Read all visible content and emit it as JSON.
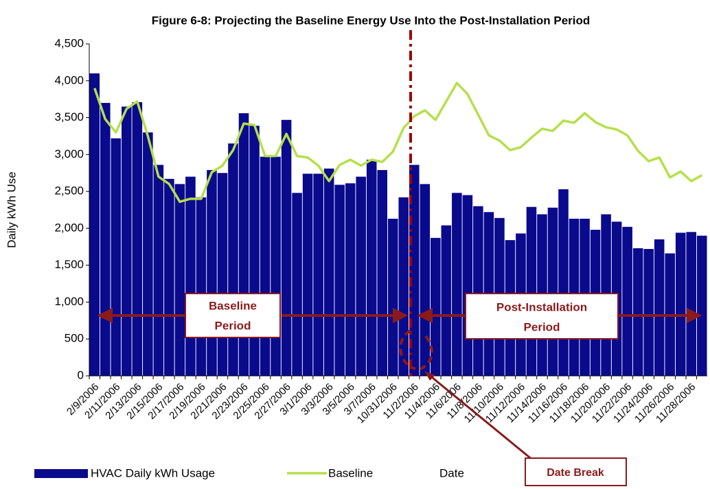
{
  "chart_data": {
    "type": "bar_line",
    "title": "Figure 6-8: Projecting the Baseline Energy Use Into the Post-Installation Period",
    "y_label": "Daily kWh Use",
    "x_label": "Date",
    "categories": [
      "2/9/2006",
      null,
      "2/11/2006",
      null,
      "2/13/2006",
      null,
      "2/15/2006",
      null,
      "2/17/2006",
      null,
      "2/19/2006",
      null,
      "2/21/2006",
      null,
      "2/23/2006",
      null,
      "2/25/2006",
      null,
      "2/27/2006",
      null,
      "3/1/2006",
      null,
      "3/3/2006",
      null,
      "3/5/2006",
      null,
      "3/7/2006",
      null,
      "10/31/2006",
      null,
      "11/2/2006",
      null,
      "11/4/2006",
      null,
      "11/6/2006",
      null,
      "11/8/2006",
      null,
      "11/10/2006",
      null,
      "11/12/2006",
      null,
      "11/14/2006",
      null,
      "11/16/2006",
      null,
      "11/18/2006",
      null,
      "11/20/2006",
      null,
      "11/22/2006",
      null,
      "11/24/2006",
      null,
      "11/26/2006",
      null,
      "11/28/2006",
      null
    ],
    "series": [
      {
        "name": "HVAC Daily kWh Usage",
        "kind": "bar",
        "color": "#0a0a8c",
        "values": [
          4100,
          3700,
          3220,
          3650,
          3710,
          3300,
          2860,
          2670,
          2600,
          2700,
          2420,
          2790,
          2750,
          3150,
          3560,
          3390,
          2970,
          2970,
          3470,
          2480,
          2740,
          2740,
          2810,
          2590,
          2610,
          2700,
          2930,
          2790,
          2130,
          2420,
          2860,
          2600,
          1870,
          2040,
          2480,
          2450,
          2300,
          2220,
          2140,
          1840,
          1930,
          2290,
          2190,
          2280,
          2530,
          2130,
          2130,
          1980,
          2190,
          2090,
          2020,
          1730,
          1720,
          1850,
          1660,
          1940,
          1950,
          1900
        ]
      },
      {
        "name": "Baseline",
        "kind": "line",
        "color": "#b5e04a",
        "values": [
          3900,
          3480,
          3300,
          3620,
          3720,
          3250,
          2700,
          2600,
          2360,
          2400,
          2400,
          2760,
          2850,
          3060,
          3420,
          3400,
          2980,
          2980,
          3280,
          2980,
          2960,
          2850,
          2640,
          2860,
          2930,
          2850,
          2930,
          2900,
          3040,
          3360,
          3520,
          3600,
          3470,
          3720,
          3970,
          3820,
          3540,
          3260,
          3190,
          3060,
          3100,
          3230,
          3350,
          3320,
          3460,
          3430,
          3560,
          3440,
          3370,
          3340,
          3260,
          3050,
          2910,
          2960,
          2690,
          2770,
          2640,
          2720
        ]
      }
    ],
    "ylim": [
      0,
      4500
    ],
    "yticks": [
      0,
      500,
      {
        "value": 1000,
        "label": "1,000"
      },
      {
        "value": 1500,
        "label": "1,500"
      },
      {
        "value": 2000,
        "label": "2,000"
      },
      {
        "value": 2500,
        "label": "2,500"
      },
      {
        "value": 3000,
        "label": "3,000"
      },
      {
        "value": 3500,
        "label": "3,500"
      },
      {
        "value": 4000,
        "label": "4,000"
      },
      {
        "value": 4500,
        "label": "4,500"
      }
    ],
    "annotations": {
      "baseline_period": [
        "Baseline",
        "Period"
      ],
      "post_period": [
        "Post-Installation",
        "Period"
      ],
      "date_break": "Date Break"
    }
  }
}
